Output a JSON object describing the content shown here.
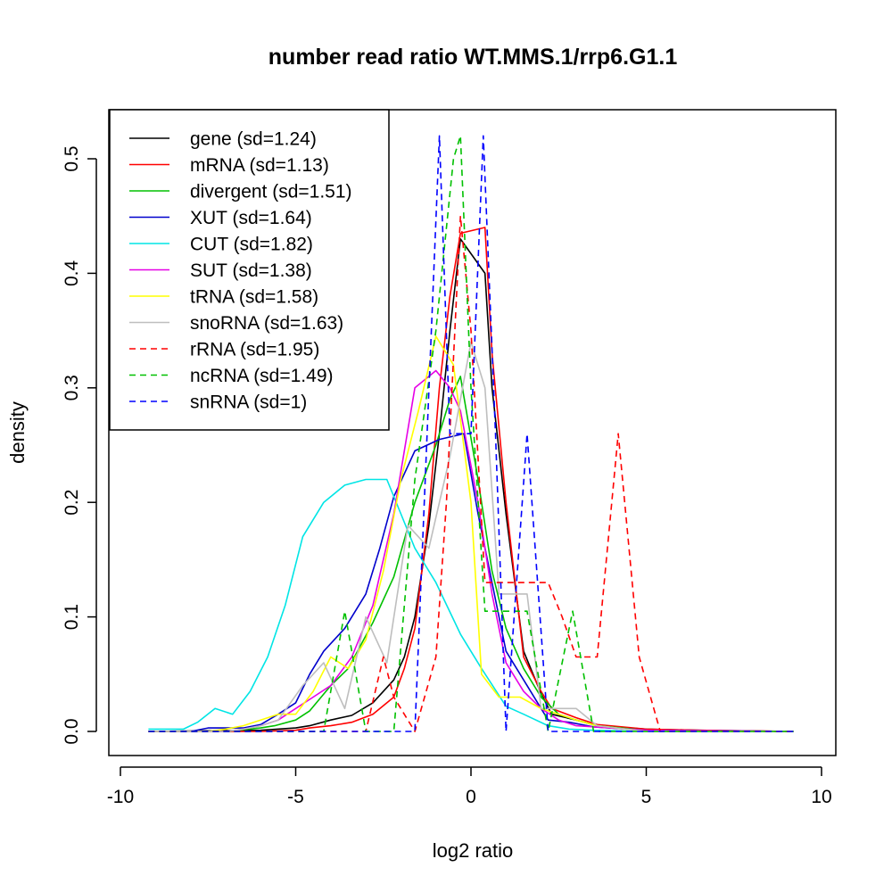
{
  "chart_data": {
    "type": "line",
    "title": "number read ratio WT.MMS.1/rrp6.G1.1",
    "xlabel": "log2 ratio",
    "ylabel": "density",
    "xlim": [
      -10,
      10
    ],
    "ylim": [
      0,
      0.5
    ],
    "xticks": [
      -10,
      -5,
      0,
      5,
      10
    ],
    "yticks": [
      0.0,
      0.1,
      0.2,
      0.3,
      0.4,
      0.5
    ],
    "xtick_labels": [
      "-10",
      "-5",
      "0",
      "5",
      "10"
    ],
    "ytick_labels": [
      "0.0",
      "0.1",
      "0.2",
      "0.3",
      "0.4",
      "0.5"
    ],
    "legend_position": "top-left",
    "grid": false,
    "series": [
      {
        "name": "gene (sd=1.24)",
        "color": "#000000",
        "dash": false,
        "x": [
          -9.2,
          -6.0,
          -5.0,
          -4.6,
          -4.0,
          -3.4,
          -2.8,
          -2.2,
          -1.9,
          -1.6,
          -1.2,
          -0.9,
          -0.6,
          -0.3,
          0.4,
          0.6,
          1.0,
          1.5,
          2.0,
          2.3,
          3.0,
          3.6,
          5.0,
          6.5,
          9.2
        ],
        "y": [
          0.0,
          0.001,
          0.003,
          0.005,
          0.01,
          0.014,
          0.025,
          0.045,
          0.065,
          0.1,
          0.18,
          0.26,
          0.35,
          0.43,
          0.4,
          0.3,
          0.19,
          0.07,
          0.033,
          0.015,
          0.01,
          0.005,
          0.002,
          0.001,
          0.0
        ]
      },
      {
        "name": "mRNA (sd=1.13)",
        "color": "#ff0000",
        "dash": false,
        "x": [
          -9.2,
          -6.0,
          -5.0,
          -4.6,
          -4.0,
          -3.4,
          -2.8,
          -2.2,
          -1.9,
          -1.6,
          -1.2,
          -0.9,
          -0.6,
          -0.3,
          0.4,
          0.6,
          1.0,
          1.5,
          2.0,
          2.3,
          3.0,
          3.6,
          5.0,
          6.5,
          9.2
        ],
        "y": [
          0.0,
          0.0,
          0.001,
          0.003,
          0.005,
          0.008,
          0.015,
          0.03,
          0.055,
          0.09,
          0.19,
          0.3,
          0.38,
          0.435,
          0.44,
          0.33,
          0.2,
          0.065,
          0.035,
          0.02,
          0.012,
          0.006,
          0.002,
          0.001,
          0.0
        ]
      },
      {
        "name": "divergent (sd=1.51)",
        "color": "#00c000",
        "dash": false,
        "x": [
          -9.2,
          -7.0,
          -6.0,
          -5.6,
          -5.0,
          -4.6,
          -4.0,
          -3.5,
          -2.8,
          -2.2,
          -1.6,
          -1.0,
          -0.6,
          -0.3,
          0.2,
          0.6,
          1.0,
          1.5,
          2.0,
          2.5,
          3.0,
          3.6,
          5.0,
          9.2
        ],
        "y": [
          0.0,
          0.0,
          0.003,
          0.005,
          0.01,
          0.018,
          0.04,
          0.055,
          0.095,
          0.135,
          0.2,
          0.25,
          0.29,
          0.31,
          0.22,
          0.14,
          0.09,
          0.055,
          0.03,
          0.015,
          0.01,
          0.005,
          0.001,
          0.0
        ]
      },
      {
        "name": "XUT (sd=1.64)",
        "color": "#0000cc",
        "dash": false,
        "x": [
          -9.2,
          -8.0,
          -7.5,
          -7.0,
          -6.5,
          -6.0,
          -5.5,
          -5.0,
          -4.6,
          -4.2,
          -3.6,
          -3.0,
          -2.6,
          -2.2,
          -1.6,
          -0.9,
          -0.2,
          0.2,
          0.6,
          1.0,
          1.6,
          2.2,
          2.8,
          3.5,
          5.0,
          9.2
        ],
        "y": [
          0.0,
          0.0,
          0.003,
          0.003,
          0.003,
          0.006,
          0.015,
          0.025,
          0.05,
          0.07,
          0.09,
          0.12,
          0.16,
          0.205,
          0.245,
          0.255,
          0.26,
          0.19,
          0.13,
          0.07,
          0.04,
          0.01,
          0.008,
          0.004,
          0.001,
          0.0
        ]
      },
      {
        "name": "CUT (sd=1.82)",
        "color": "#00e5e5",
        "dash": false,
        "x": [
          -9.2,
          -8.6,
          -8.2,
          -7.8,
          -7.3,
          -6.8,
          -6.3,
          -5.8,
          -5.3,
          -4.8,
          -4.2,
          -3.6,
          -3.0,
          -2.4,
          -2.0,
          -1.6,
          -1.0,
          -0.3,
          0.3,
          1.0,
          1.5,
          2.2,
          2.8,
          3.5,
          5.0,
          9.2
        ],
        "y": [
          0.002,
          0.002,
          0.002,
          0.008,
          0.02,
          0.015,
          0.035,
          0.065,
          0.11,
          0.17,
          0.2,
          0.215,
          0.22,
          0.22,
          0.19,
          0.16,
          0.13,
          0.085,
          0.055,
          0.022,
          0.015,
          0.005,
          0.002,
          0.001,
          0.0,
          0.0
        ]
      },
      {
        "name": "SUT (sd=1.38)",
        "color": "#e600e6",
        "dash": false,
        "x": [
          -9.2,
          -7.0,
          -6.5,
          -6.0,
          -5.5,
          -5.0,
          -4.5,
          -4.0,
          -3.4,
          -2.8,
          -2.2,
          -1.6,
          -1.0,
          -0.6,
          -0.3,
          0.2,
          0.6,
          1.0,
          1.5,
          2.0,
          2.5,
          3.0,
          5.0,
          9.2
        ],
        "y": [
          0.0,
          0.0,
          0.002,
          0.005,
          0.01,
          0.02,
          0.03,
          0.04,
          0.065,
          0.11,
          0.19,
          0.3,
          0.315,
          0.3,
          0.28,
          0.2,
          0.12,
          0.06,
          0.035,
          0.02,
          0.01,
          0.005,
          0.001,
          0.0
        ]
      },
      {
        "name": "tRNA (sd=1.58)",
        "color": "#ffff00",
        "dash": false,
        "x": [
          -9.2,
          -7.5,
          -7.0,
          -6.5,
          -6.0,
          -5.5,
          -5.0,
          -4.5,
          -4.0,
          -3.5,
          -3.0,
          -2.5,
          -2.0,
          -1.5,
          -1.0,
          -0.5,
          0.0,
          0.3,
          0.8,
          1.4,
          2.0,
          2.5,
          3.0,
          3.6,
          5.0,
          9.2
        ],
        "y": [
          0.0,
          0.0,
          0.002,
          0.005,
          0.01,
          0.015,
          0.015,
          0.035,
          0.065,
          0.055,
          0.08,
          0.14,
          0.22,
          0.28,
          0.345,
          0.32,
          0.2,
          0.05,
          0.03,
          0.03,
          0.02,
          0.015,
          0.01,
          0.005,
          0.0,
          0.0
        ]
      },
      {
        "name": "snoRNA (sd=1.63)",
        "color": "#bebebe",
        "dash": false,
        "x": [
          -9.2,
          -7.0,
          -6.5,
          -6.0,
          -5.5,
          -4.8,
          -4.2,
          -3.6,
          -3.0,
          -2.4,
          -1.8,
          -1.2,
          -0.6,
          0.0,
          0.4,
          0.8,
          1.2,
          1.6,
          2.0,
          2.4,
          3.0,
          3.6,
          5.0,
          9.2
        ],
        "y": [
          0.0,
          0.0,
          0.002,
          0.005,
          0.01,
          0.04,
          0.06,
          0.02,
          0.1,
          0.06,
          0.18,
          0.16,
          0.24,
          0.34,
          0.3,
          0.12,
          0.12,
          0.12,
          0.02,
          0.02,
          0.02,
          0.005,
          0.0,
          0.0
        ]
      },
      {
        "name": "rRNA (sd=1.95)",
        "color": "#ff0000",
        "dash": true,
        "x": [
          -9.2,
          -3.0,
          -2.5,
          -2.2,
          -1.6,
          -1.0,
          -0.7,
          -0.3,
          0.0,
          0.4,
          1.0,
          1.5,
          2.2,
          2.6,
          3.0,
          3.6,
          4.2,
          4.8,
          5.4,
          9.2
        ],
        "y": [
          0.0,
          0.0,
          0.065,
          0.03,
          0.0,
          0.065,
          0.2,
          0.45,
          0.35,
          0.13,
          0.13,
          0.13,
          0.13,
          0.1,
          0.065,
          0.065,
          0.26,
          0.065,
          0.0,
          0.0
        ]
      },
      {
        "name": "ncRNA (sd=1.49)",
        "color": "#00c000",
        "dash": true,
        "x": [
          -9.2,
          -4.2,
          -3.6,
          -3.0,
          -2.2,
          -1.6,
          -1.0,
          -0.5,
          -0.3,
          0.0,
          0.4,
          1.0,
          1.6,
          2.2,
          2.9,
          3.5,
          9.2
        ],
        "y": [
          0.0,
          0.0,
          0.105,
          0.0,
          0.0,
          0.22,
          0.35,
          0.5,
          0.52,
          0.3,
          0.105,
          0.105,
          0.105,
          0.0,
          0.105,
          0.0,
          0.0
        ]
      },
      {
        "name": "snRNA (sd=1)",
        "color": "#0000ff",
        "dash": true,
        "x": [
          -9.2,
          -1.6,
          -1.4,
          -0.9,
          -0.6,
          -0.3,
          0.0,
          0.35,
          0.7,
          1.0,
          1.6,
          2.2,
          9.2
        ],
        "y": [
          0.0,
          0.0,
          0.15,
          0.52,
          0.26,
          0.26,
          0.26,
          0.52,
          0.26,
          0.0,
          0.26,
          0.0,
          0.0
        ]
      }
    ]
  }
}
